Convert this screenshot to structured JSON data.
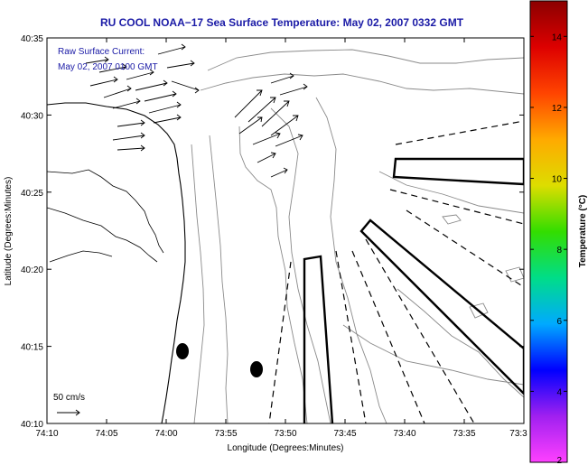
{
  "chart_data": {
    "type": "map",
    "title": "RU COOL  NOAA−17  Sea Surface Temperature:  May 02, 2007 0332 GMT",
    "xlabel": "Longitude (Degrees:Minutes)",
    "ylabel": "Latitude (Degrees:Minutes)",
    "x_ticks": [
      "74:10",
      "74:05",
      "74:00",
      "73:55",
      "73:50",
      "73:45",
      "73:40",
      "73:35",
      "73:3"
    ],
    "y_ticks": [
      "40:10",
      "40:15",
      "40:20",
      "40:25",
      "40:30",
      "40:35"
    ],
    "xlim_minutes_west": [
      10,
      30
    ],
    "ylim_minutes_north": [
      10,
      35
    ],
    "current_caption_line1": "Raw Surface Current:",
    "current_caption_line2": "May 02, 2007 0100 GMT",
    "scale_label": "50 cm/s",
    "colorbar": {
      "label": "Temperature (°C)",
      "ticks": [
        "2",
        "4",
        "6",
        "8",
        "10",
        "12",
        "14"
      ],
      "range": [
        2,
        15
      ],
      "colors": [
        "#ff40ff",
        "#a020f0",
        "#0000ff",
        "#00aaff",
        "#00dd88",
        "#33dd00",
        "#dddd00",
        "#ffaa00",
        "#ff4400",
        "#dd0000",
        "#8b0000"
      ]
    },
    "markers": [
      {
        "lon_min": 73.98,
        "lat_min": 40.245
      },
      {
        "lon_min": 73.875,
        "lat_min": 40.225
      }
    ]
  }
}
